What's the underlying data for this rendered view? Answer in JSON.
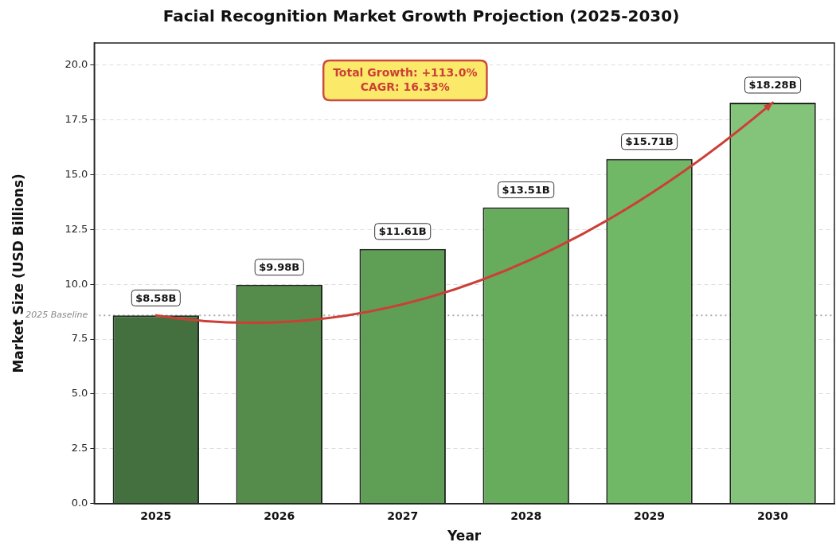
{
  "chart_data": {
    "type": "bar",
    "title": "Facial Recognition Market Growth Projection (2025-2030)",
    "xlabel": "Year",
    "ylabel": "Market Size (USD Billions)",
    "categories": [
      "2025",
      "2026",
      "2027",
      "2028",
      "2029",
      "2030"
    ],
    "values": [
      8.58,
      9.98,
      11.61,
      13.51,
      15.71,
      18.28
    ],
    "colors": [
      "#44703f",
      "#558c4c",
      "#5e9e55",
      "#67ab5d",
      "#70b865",
      "#84c47a"
    ],
    "value_labels": [
      "$8.58B",
      "$9.98B",
      "$11.61B",
      "$13.51B",
      "$15.71B",
      "$18.28B"
    ],
    "ylim": [
      0,
      21
    ],
    "yticks": [
      {
        "value": 0,
        "label": "0.0"
      },
      {
        "value": 2.5,
        "label": "2.5"
      },
      {
        "value": 5,
        "label": "5.0"
      },
      {
        "value": 7.5,
        "label": "7.5"
      },
      {
        "value": 10,
        "label": "10.0"
      },
      {
        "value": 12.5,
        "label": "12.5"
      },
      {
        "value": 15,
        "label": "15.0"
      },
      {
        "value": 17.5,
        "label": "17.5"
      },
      {
        "value": 20,
        "label": "20.0"
      }
    ],
    "grid": "y",
    "ref_lines": [
      {
        "axis": "y",
        "value": 8.58,
        "label": "2025 Baseline",
        "color": "#aaaaaa",
        "line_style": "dotted"
      }
    ],
    "annotations": [
      "Total Growth: +113.0%\nCAGR: 16.33%"
    ]
  }
}
